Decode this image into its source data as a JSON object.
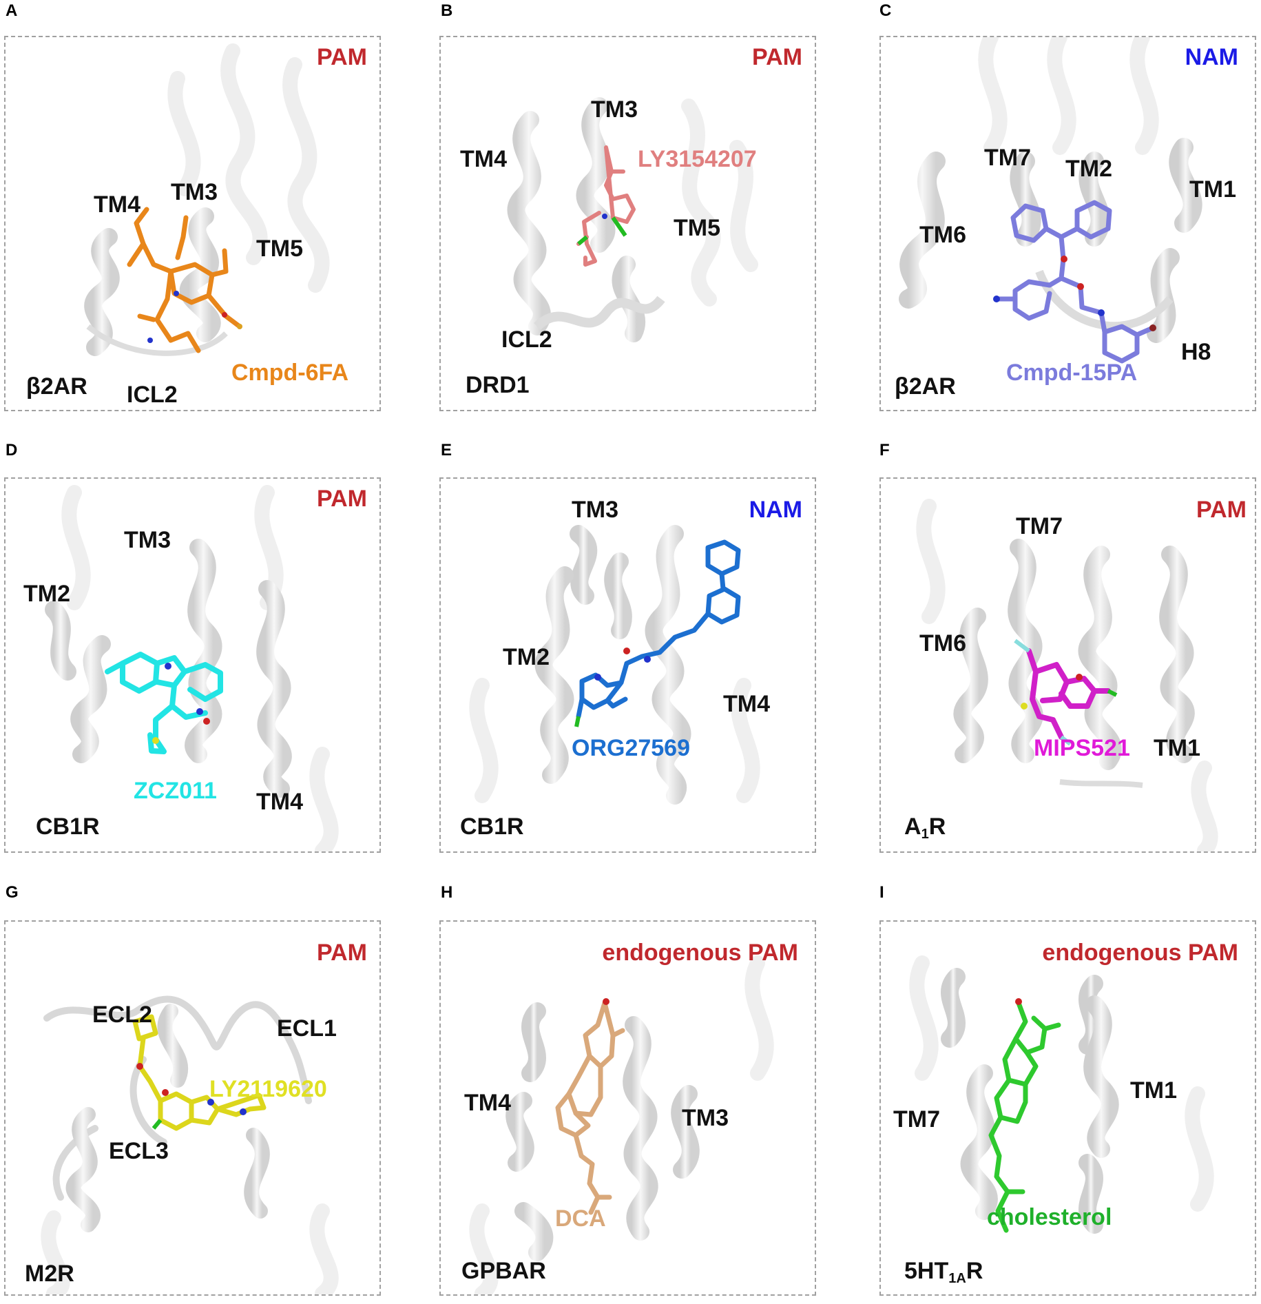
{
  "panels": [
    {
      "letter": "A",
      "modulator": "PAM",
      "modulator_color": "#c0282d",
      "ligand": "Cmpd-6FA",
      "ligand_color": "#e8861a",
      "receptor": "β2AR",
      "helices": [
        "TM4",
        "TM3",
        "TM5",
        "ICL2"
      ]
    },
    {
      "letter": "B",
      "modulator": "PAM",
      "modulator_color": "#c0282d",
      "ligand": "LY3154207",
      "ligand_color": "#e07f7f",
      "receptor": "DRD1",
      "helices": [
        "TM3",
        "TM4",
        "TM5",
        "ICL2"
      ]
    },
    {
      "letter": "C",
      "modulator": "NAM",
      "modulator_color": "#1a1ae6",
      "ligand": "Cmpd-15PA",
      "ligand_color": "#7b7bdc",
      "receptor": "β2AR",
      "helices": [
        "TM7",
        "TM2",
        "TM1",
        "TM6",
        "H8"
      ]
    },
    {
      "letter": "D",
      "modulator": "PAM",
      "modulator_color": "#c0282d",
      "ligand": "ZCZ011",
      "ligand_color": "#22e4e4",
      "receptor": "CB1R",
      "helices": [
        "TM3",
        "TM2",
        "TM4"
      ]
    },
    {
      "letter": "E",
      "modulator": "NAM",
      "modulator_color": "#1a1ae6",
      "ligand": "ORG27569",
      "ligand_color": "#1c6fd0",
      "receptor": "CB1R",
      "helices": [
        "TM3",
        "TM2",
        "TM4"
      ]
    },
    {
      "letter": "F",
      "modulator": "PAM",
      "modulator_color": "#c0282d",
      "ligand": "MIPS521",
      "ligand_color": "#e01ad8",
      "receptor_main": "A",
      "receptor_sub": "1",
      "receptor_tail": "R",
      "helices": [
        "TM7",
        "TM6",
        "TM1"
      ]
    },
    {
      "letter": "G",
      "modulator": "PAM",
      "modulator_color": "#c0282d",
      "ligand": "LY2119620",
      "ligand_color": "#e0e024",
      "receptor": "M2R",
      "helices": [
        "ECL2",
        "ECL1",
        "ECL3"
      ]
    },
    {
      "letter": "H",
      "modulator": "endogenous PAM",
      "modulator_color": "#c0282d",
      "ligand": "DCA",
      "ligand_color": "#d9a87a",
      "receptor": "GPBAR",
      "helices": [
        "TM4",
        "TM3"
      ]
    },
    {
      "letter": "I",
      "modulator": "endogenous PAM",
      "modulator_color": "#c0282d",
      "ligand": "cholesterol",
      "ligand_color": "#1fb02b",
      "receptor_main": "5HT",
      "receptor_sub": "1A",
      "receptor_tail": "R",
      "helices": [
        "TM7",
        "TM1"
      ]
    }
  ]
}
